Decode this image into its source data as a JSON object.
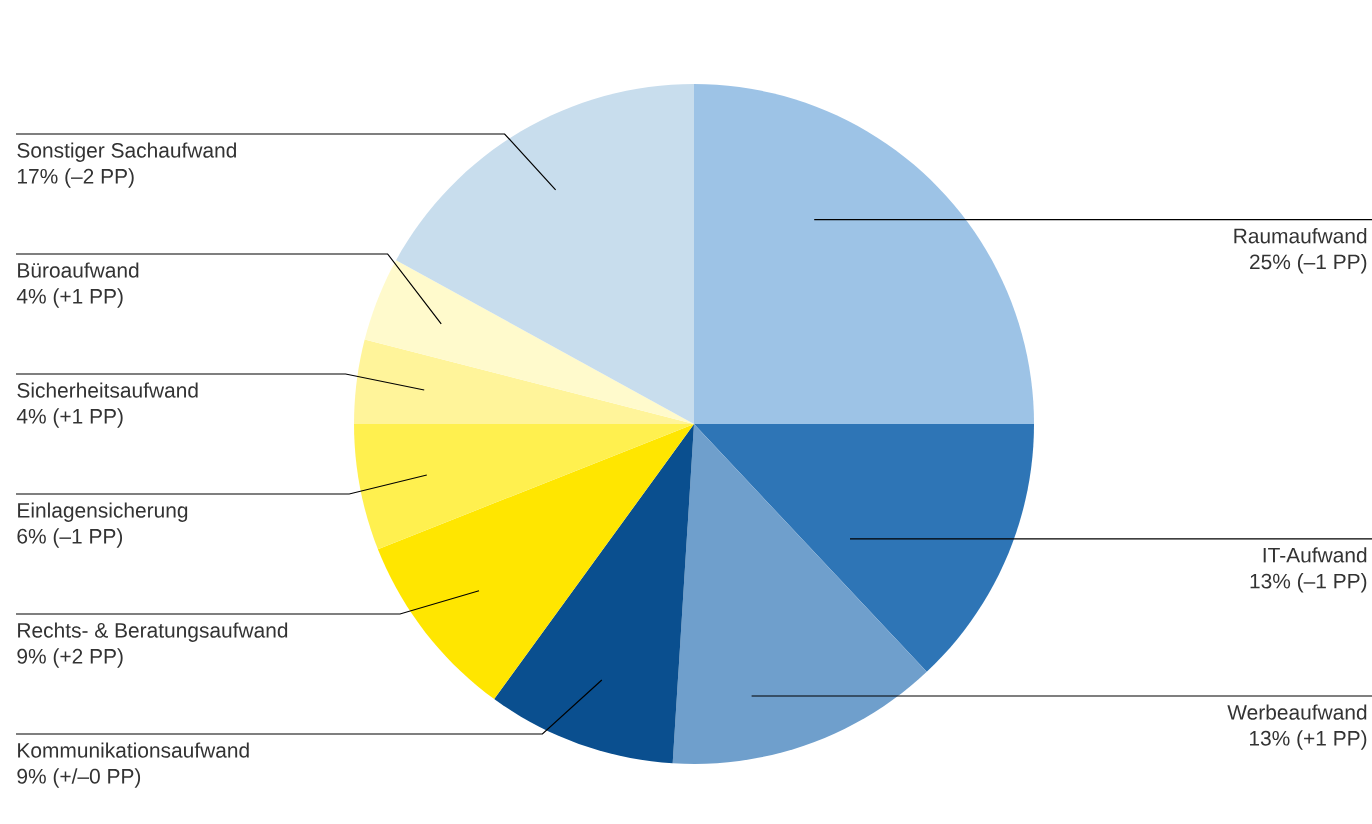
{
  "chart_data": {
    "type": "pie",
    "categories": [
      "Raumaufwand",
      "IT-Aufwand",
      "Werbeaufwand",
      "Kommunikationsaufwand",
      "Rechts- & Beratungsaufwand",
      "Einlagensicherung",
      "Sicherheitsaufwand",
      "Büroaufwand",
      "Sonstiger Sachaufwand"
    ],
    "values": [
      25,
      13,
      13,
      9,
      9,
      6,
      4,
      4,
      17
    ],
    "value_labels": [
      "25% (–1 PP)",
      "13% (–1 PP)",
      "13% (+1 PP)",
      "9% (+/–0 PP)",
      "9% (+2 PP)",
      "6% (–1 PP)",
      "4% (+1 PP)",
      "4% (+1 PP)",
      "17% (–2 PP)"
    ],
    "colors": [
      "#9dc3e6",
      "#2e75b6",
      "#6f9fcc",
      "#0a4f8f",
      "#ffe600",
      "#fff04f",
      "#fff49a",
      "#fffacc",
      "#c8dded"
    ]
  }
}
